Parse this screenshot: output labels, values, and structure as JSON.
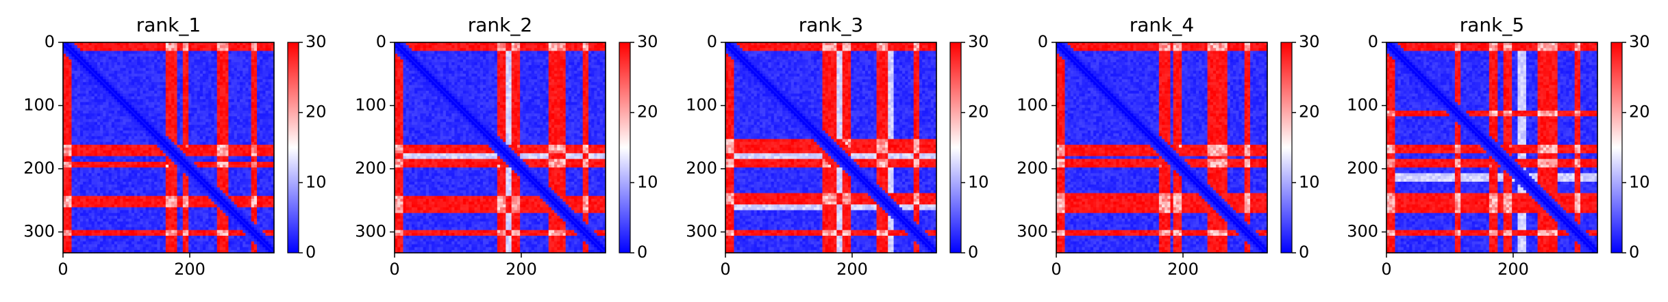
{
  "chart_data": [
    {
      "type": "heatmap",
      "title": "rank_1",
      "x_ticks": [
        "0",
        "200"
      ],
      "y_ticks": [
        "0",
        "100",
        "200",
        "300"
      ],
      "matrix_size": 333,
      "colorbar": {
        "range": [
          0,
          30
        ],
        "ticks": [
          "0",
          "10",
          "20",
          "30"
        ],
        "colormap": "bwr"
      },
      "red_bands": [
        [
          0,
          14
        ],
        [
          160,
          178
        ],
        [
          188,
          198
        ],
        [
          245,
          262
        ],
        [
          296,
          304
        ]
      ],
      "light_cols": [
        170,
        255
      ],
      "diagonal_value": 0
    },
    {
      "type": "heatmap",
      "title": "rank_2",
      "x_ticks": [
        "0",
        "200"
      ],
      "y_ticks": [
        "0",
        "100",
        "200",
        "300"
      ],
      "matrix_size": 333,
      "colorbar": {
        "range": [
          0,
          30
        ],
        "ticks": [
          "0",
          "10",
          "20",
          "30"
        ],
        "colormap": "bwr"
      },
      "red_bands": [
        [
          0,
          14
        ],
        [
          160,
          176
        ],
        [
          186,
          198
        ],
        [
          245,
          270
        ],
        [
          296,
          304
        ]
      ],
      "light_cols": [
        180,
        262
      ],
      "diagonal_value": 0
    },
    {
      "type": "heatmap",
      "title": "rank_3",
      "x_ticks": [
        "0",
        "200"
      ],
      "y_ticks": [
        "0",
        "100",
        "200",
        "300"
      ],
      "matrix_size": 333,
      "colorbar": {
        "range": [
          0,
          30
        ],
        "ticks": [
          "0",
          "10",
          "20",
          "30"
        ],
        "colormap": "bwr"
      },
      "red_bands": [
        [
          0,
          14
        ],
        [
          155,
          176
        ],
        [
          184,
          200
        ],
        [
          240,
          258
        ],
        [
          296,
          304
        ]
      ],
      "light_cols": [
        180,
        258
      ],
      "diagonal_value": 0
    },
    {
      "type": "heatmap",
      "title": "rank_4",
      "x_ticks": [
        "0",
        "200"
      ],
      "y_ticks": [
        "0",
        "100",
        "200",
        "300"
      ],
      "matrix_size": 333,
      "colorbar": {
        "range": [
          0,
          30
        ],
        "ticks": [
          "0",
          "10",
          "20",
          "30"
        ],
        "colormap": "bwr"
      },
      "red_bands": [
        [
          0,
          14
        ],
        [
          162,
          178
        ],
        [
          186,
          198
        ],
        [
          240,
          270
        ],
        [
          296,
          306
        ]
      ],
      "light_cols": [
        250
      ],
      "diagonal_value": 0
    },
    {
      "type": "heatmap",
      "title": "rank_5",
      "x_ticks": [
        "0",
        "200"
      ],
      "y_ticks": [
        "0",
        "100",
        "200",
        "300"
      ],
      "matrix_size": 333,
      "colorbar": {
        "range": [
          0,
          30
        ],
        "ticks": [
          "0",
          "10",
          "20",
          "30"
        ],
        "colormap": "bwr"
      },
      "red_bands": [
        [
          0,
          14
        ],
        [
          108,
          116
        ],
        [
          160,
          176
        ],
        [
          186,
          198
        ],
        [
          240,
          270
        ],
        [
          296,
          304
        ]
      ],
      "light_cols": [
        215,
        250
      ],
      "diagonal_value": 0
    }
  ],
  "colors": {
    "low": "#0000ff",
    "mid": "#ffffff",
    "high": "#ff0000"
  }
}
